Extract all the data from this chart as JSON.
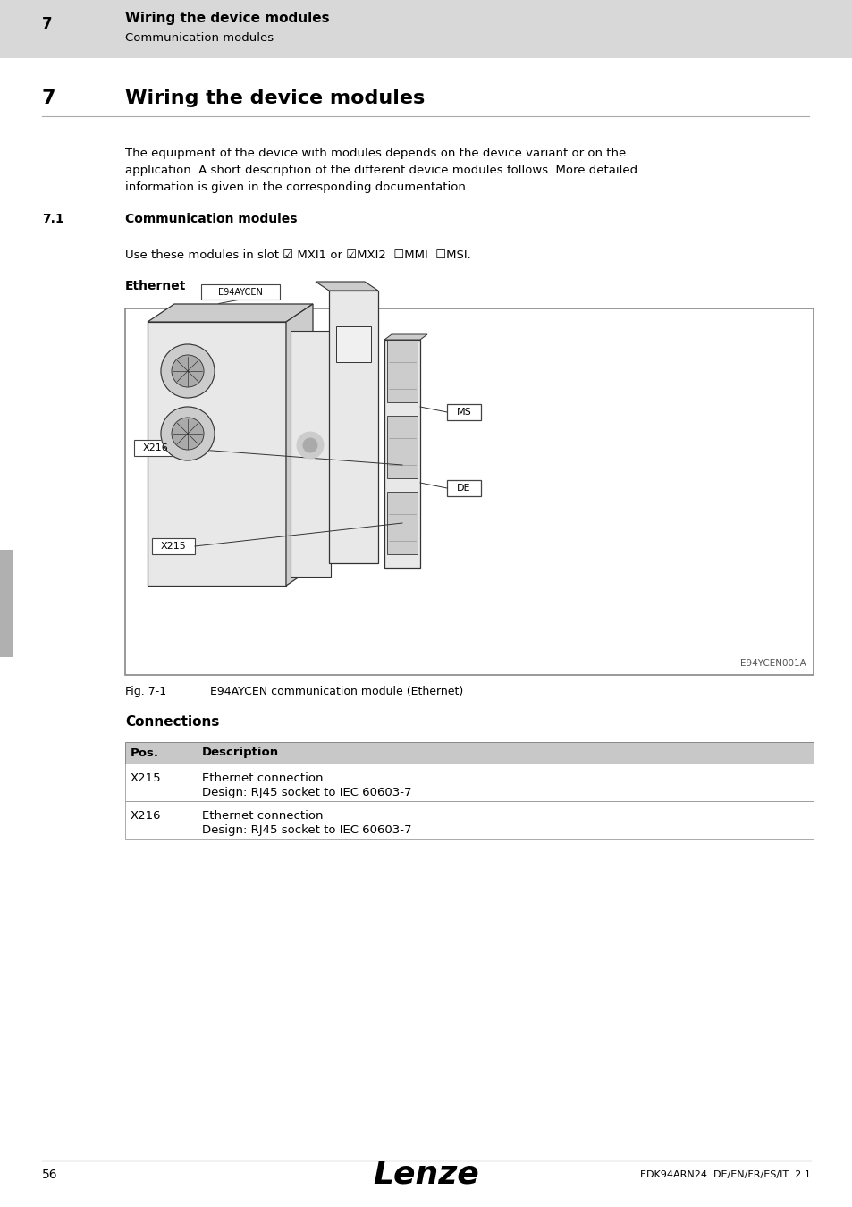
{
  "header_bg": "#d8d8d8",
  "header_number": "7",
  "header_title": "Wiring the device modules",
  "header_subtitle": "Communication modules",
  "section_number": "7",
  "section_title": "Wiring the device modules",
  "body_text_lines": [
    "The equipment of the device with modules depends on the device variant or on the",
    "application. A short description of the different device modules follows. More detailed",
    "information is given in the corresponding documentation."
  ],
  "subsection_number": "7.1",
  "subsection_title": "Communication modules",
  "slot_text": "Use these modules in slot ☑ MXI1 or ☑MXI2  ☐MMI  ☐MSI.",
  "ethernet_label": "Ethernet",
  "fig_caption_bold": "Fig. 7-1",
  "fig_caption_text": "E94AYCEN communication module (Ethernet)",
  "connections_title": "Connections",
  "table_headers": [
    "Pos.",
    "Description"
  ],
  "table_rows": [
    [
      "X215",
      "Ethernet connection",
      "Design: RJ45 socket to IEC 60603-7"
    ],
    [
      "X216",
      "Ethernet connection",
      "Design: RJ45 socket to IEC 60603-7"
    ]
  ],
  "footer_page": "56",
  "footer_logo": "Lenze",
  "footer_doc": "EDK94ARN24  DE/EN/FR/ES/IT  2.1",
  "page_bg": "#ffffff",
  "header_bg_color": "#d8d8d8",
  "left_tab_color": "#b0b0b0",
  "img_credit": "E94YCEN001A"
}
